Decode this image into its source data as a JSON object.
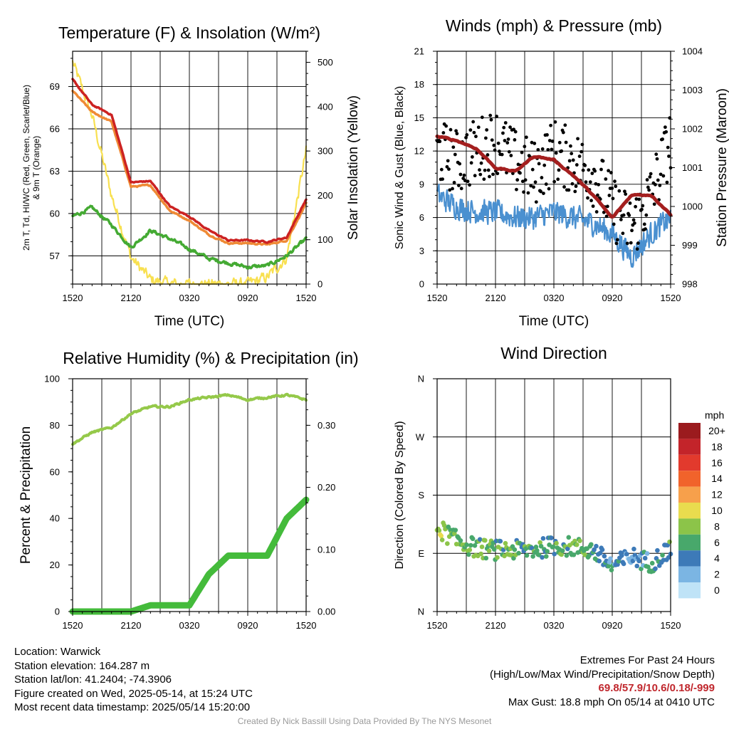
{
  "colors": {
    "red": "#cc2222",
    "orange": "#ef8a35",
    "green": "#44aa33",
    "yellow": "#f8e050",
    "blue": "#4a90d0",
    "black": "#000000",
    "maroon": "#a41f1f",
    "rh": "#95c94a",
    "precip": "#44bb3b"
  },
  "x_ticks": [
    "1520",
    "2120",
    "0320",
    "0920",
    "1520"
  ],
  "panels": {
    "temp": {
      "title": "Temperature (F) & Insolation (W/m²)",
      "ylabel_line1": "2m T, Td, HI/WC (Red, Green, Scarlet/Blue)",
      "ylabel_line2": "& 9m T (Orange)",
      "y2label": "Solar Insolation (Yellow)",
      "xlabel": "Time (UTC)",
      "y_ticks": [
        "57",
        "60",
        "63",
        "66",
        "69"
      ],
      "y2_ticks": [
        "0",
        "100",
        "200",
        "300",
        "400",
        "500"
      ]
    },
    "wind": {
      "title": "Winds (mph) & Pressure (mb)",
      "ylabel": "Sonic Wind & Gust (Blue, Black)",
      "y2label": "Station Pressure (Maroon)",
      "xlabel": "Time (UTC)",
      "y_ticks": [
        "0",
        "3",
        "6",
        "9",
        "12",
        "15",
        "18",
        "21"
      ],
      "y2_ticks": [
        "998",
        "999",
        "1000",
        "1001",
        "1002",
        "1003",
        "1004"
      ]
    },
    "rh": {
      "title": "Relative Humidity (%) & Precipitation (in)",
      "ylabel": "Percent & Precipitation",
      "y_ticks": [
        "0",
        "20",
        "40",
        "60",
        "80",
        "100"
      ],
      "y2_ticks": [
        "0.00",
        "0.10",
        "0.20",
        "0.30"
      ]
    },
    "dir": {
      "title": "Wind Direction",
      "ylabel": "Direction (Colored By Speed)",
      "y_ticks": [
        "N",
        "E",
        "S",
        "W",
        "N"
      ],
      "legend_unit": "mph",
      "legend_labels": [
        "20+",
        "18",
        "16",
        "14",
        "12",
        "10",
        "8",
        "6",
        "4",
        "2",
        "0"
      ],
      "legend_colors": [
        "#9b1b1e",
        "#c3242a",
        "#e23a2d",
        "#f1632b",
        "#f7a04b",
        "#e9dc4e",
        "#8cc449",
        "#48a86b",
        "#3d7ab8",
        "#7bb5e3",
        "#bfe3f7"
      ]
    }
  },
  "info": {
    "location": "Location: Warwick",
    "elevation": "Station elevation: 164.287 m",
    "latlon": "Station lat/lon: 41.2404; -74.3906",
    "created": "Figure created on Wed, 2025-05-14, at 15:24 UTC",
    "recent": "Most recent data timestamp: 2025/05/14 15:20:00"
  },
  "extremes": {
    "title": "Extremes For Past 24 Hours",
    "subtitle": "(High/Low/Max Wind/Precipitation/Snow Depth)",
    "values": "69.8/57.9/10.6/0.18/-999",
    "max_gust": "Max Gust: 18.8 mph On 05/14 at 0410 UTC"
  },
  "credit": "Created By Nick Bassill Using Data Provided By The NYS Mesonet",
  "chart_data": [
    {
      "type": "line",
      "title": "Temperature (F) & Insolation (W/m²)",
      "x": [
        "1520",
        "1720",
        "1920",
        "2120",
        "2320",
        "0120",
        "0320",
        "0520",
        "0720",
        "0920",
        "1120",
        "1320",
        "1520"
      ],
      "ylim": [
        55,
        71.5
      ],
      "y2lim": [
        0,
        525
      ],
      "series": [
        {
          "name": "2m T (Red)",
          "values": [
            69.5,
            67.7,
            67.0,
            62.2,
            62.3,
            60.5,
            59.8,
            58.8,
            58.1,
            58.1,
            58.0,
            58.3,
            61.0
          ]
        },
        {
          "name": "9m T (Orange)",
          "values": [
            68.7,
            67.2,
            66.5,
            61.9,
            62.0,
            60.2,
            59.5,
            58.5,
            57.9,
            57.9,
            57.8,
            58.1,
            60.7
          ]
        },
        {
          "name": "Td (Green)",
          "values": [
            59.8,
            60.4,
            59.2,
            57.6,
            58.8,
            58.2,
            57.5,
            56.8,
            56.5,
            56.2,
            56.3,
            57.0,
            58.2
          ]
        },
        {
          "name": "Solar Insolation (Yellow)",
          "axis": "right",
          "values": [
            500,
            380,
            200,
            60,
            10,
            0,
            0,
            0,
            0,
            0,
            15,
            60,
            300
          ]
        }
      ]
    },
    {
      "type": "line",
      "title": "Winds (mph) & Pressure (mb)",
      "x": [
        "1520",
        "1720",
        "1920",
        "2120",
        "2320",
        "0120",
        "0320",
        "0520",
        "0720",
        "0920",
        "1120",
        "1320",
        "1520"
      ],
      "ylim": [
        0,
        21
      ],
      "y2lim": [
        998,
        1004
      ],
      "series": [
        {
          "name": "Sonic Wind (Blue)",
          "values": [
            8.0,
            7.0,
            6.5,
            6.5,
            6.0,
            6.0,
            6.5,
            6.0,
            5.5,
            4.5,
            2.5,
            4.5,
            6.0
          ]
        },
        {
          "name": "Gust (Black)",
          "values": [
            12,
            11,
            12,
            13,
            11,
            10,
            12,
            11,
            10,
            7,
            5,
            8,
            13
          ]
        },
        {
          "name": "Station Pressure (Maroon)",
          "axis": "right",
          "values": [
            1001.8,
            1001.7,
            1001.5,
            1001.0,
            1000.9,
            1001.3,
            1001.2,
            1000.8,
            1000.3,
            999.7,
            1000.3,
            1000.3,
            999.8
          ]
        }
      ]
    },
    {
      "type": "line",
      "title": "Relative Humidity (%) & Precipitation (in)",
      "x": [
        "1520",
        "1720",
        "1920",
        "2120",
        "2320",
        "0120",
        "0320",
        "0520",
        "0720",
        "0920",
        "1120",
        "1320",
        "1520"
      ],
      "ylim": [
        0,
        100
      ],
      "y2lim": [
        0,
        0.375
      ],
      "series": [
        {
          "name": "Relative Humidity",
          "values": [
            72,
            77,
            79,
            85,
            88,
            88,
            91,
            92,
            93,
            91,
            92,
            93,
            91
          ]
        },
        {
          "name": "Precipitation",
          "axis": "right",
          "values": [
            0.0,
            0.0,
            0.0,
            0.0,
            0.01,
            0.01,
            0.01,
            0.06,
            0.09,
            0.09,
            0.09,
            0.15,
            0.18
          ]
        }
      ]
    },
    {
      "type": "scatter",
      "title": "Wind Direction",
      "x": [
        "1520",
        "1720",
        "1920",
        "2120",
        "2320",
        "0120",
        "0320",
        "0520",
        "0720",
        "0920",
        "1120",
        "1320",
        "1520"
      ],
      "y_categories": [
        "N",
        "E",
        "S",
        "W",
        "N"
      ],
      "ylim_degrees": [
        0,
        360
      ],
      "series": [
        {
          "name": "Direction",
          "values": [
            130,
            110,
            98,
            95,
            95,
            96,
            102,
            100,
            95,
            70,
            85,
            75,
            98
          ]
        }
      ]
    }
  ]
}
